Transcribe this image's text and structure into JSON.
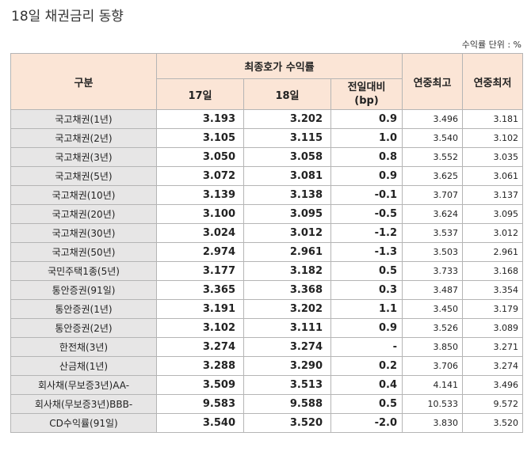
{
  "title": "18일 채권금리 동향",
  "unit_label": "수익률 단위 : %",
  "headers": {
    "category": "구분",
    "final_yield": "최종호가 수익률",
    "day17": "17일",
    "day18": "18일",
    "change": "전일대비\n(bp)",
    "year_high": "연중최고",
    "year_low": "연중최저"
  },
  "rows": [
    {
      "name": "국고채권(1년)",
      "d17": "3.193",
      "d18": "3.202",
      "chg": "0.9",
      "high": "3.496",
      "low": "3.181"
    },
    {
      "name": "국고채권(2년)",
      "d17": "3.105",
      "d18": "3.115",
      "chg": "1.0",
      "high": "3.540",
      "low": "3.102"
    },
    {
      "name": "국고채권(3년)",
      "d17": "3.050",
      "d18": "3.058",
      "chg": "0.8",
      "high": "3.552",
      "low": "3.035"
    },
    {
      "name": "국고채권(5년)",
      "d17": "3.072",
      "d18": "3.081",
      "chg": "0.9",
      "high": "3.625",
      "low": "3.061"
    },
    {
      "name": "국고채권(10년)",
      "d17": "3.139",
      "d18": "3.138",
      "chg": "-0.1",
      "high": "3.707",
      "low": "3.137"
    },
    {
      "name": "국고채권(20년)",
      "d17": "3.100",
      "d18": "3.095",
      "chg": "-0.5",
      "high": "3.624",
      "low": "3.095"
    },
    {
      "name": "국고채권(30년)",
      "d17": "3.024",
      "d18": "3.012",
      "chg": "-1.2",
      "high": "3.537",
      "low": "3.012"
    },
    {
      "name": "국고채권(50년)",
      "d17": "2.974",
      "d18": "2.961",
      "chg": "-1.3",
      "high": "3.503",
      "low": "2.961"
    },
    {
      "name": "국민주택1종(5년)",
      "d17": "3.177",
      "d18": "3.182",
      "chg": "0.5",
      "high": "3.733",
      "low": "3.168"
    },
    {
      "name": "통안증권(91일)",
      "d17": "3.365",
      "d18": "3.368",
      "chg": "0.3",
      "high": "3.487",
      "low": "3.354"
    },
    {
      "name": "통안증권(1년)",
      "d17": "3.191",
      "d18": "3.202",
      "chg": "1.1",
      "high": "3.450",
      "low": "3.179"
    },
    {
      "name": "통안증권(2년)",
      "d17": "3.102",
      "d18": "3.111",
      "chg": "0.9",
      "high": "3.526",
      "low": "3.089"
    },
    {
      "name": "한전채(3년)",
      "d17": "3.274",
      "d18": "3.274",
      "chg": "-",
      "high": "3.850",
      "low": "3.271"
    },
    {
      "name": "산금채(1년)",
      "d17": "3.288",
      "d18": "3.290",
      "chg": "0.2",
      "high": "3.706",
      "low": "3.274"
    },
    {
      "name": "회사채(무보증3년)AA-",
      "d17": "3.509",
      "d18": "3.513",
      "chg": "0.4",
      "high": "4.141",
      "low": "3.496"
    },
    {
      "name": "회사채(무보증3년)BBB-",
      "d17": "9.583",
      "d18": "9.588",
      "chg": "0.5",
      "high": "10.533",
      "low": "9.572"
    },
    {
      "name": "CD수익률(91일)",
      "d17": "3.540",
      "d18": "3.520",
      "chg": "-2.0",
      "high": "3.830",
      "low": "3.520"
    }
  ]
}
